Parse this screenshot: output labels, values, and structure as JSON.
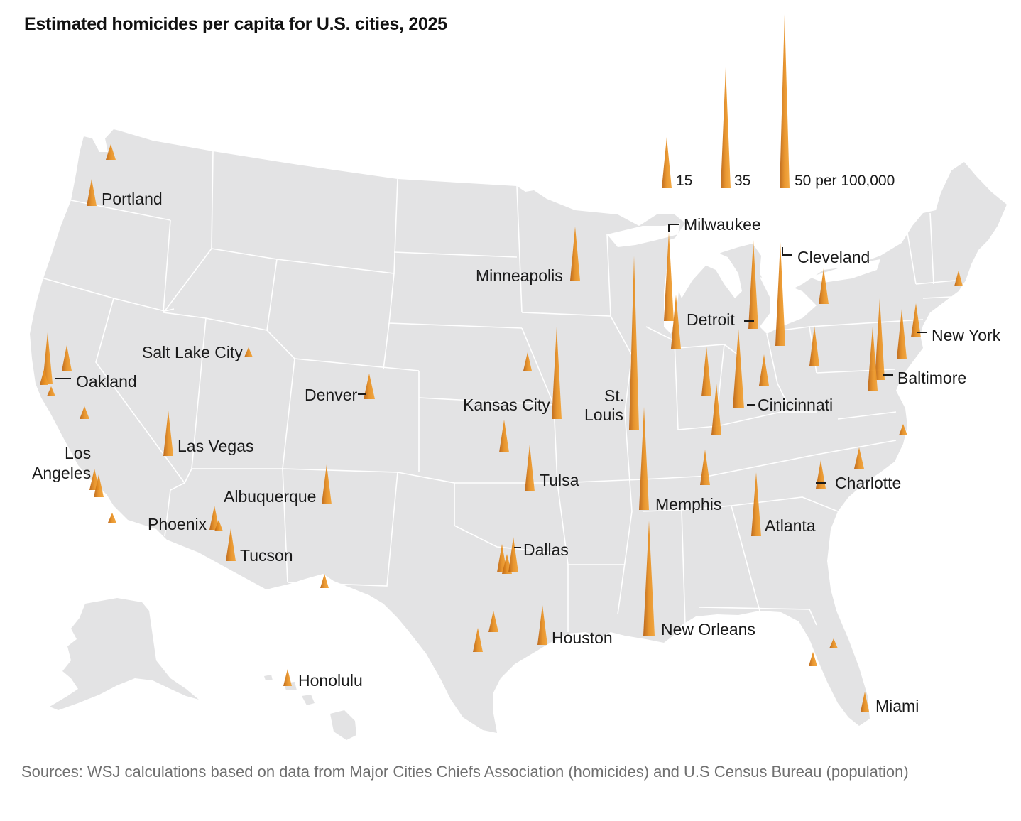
{
  "title": "Estimated homicides per capita for U.S. cities, 2025",
  "source": "Sources: WSJ calculations based on data from Major Cities Chiefs Association (homicides) and U.S Census Bureau (population)",
  "colors": {
    "spike": "#e08a1e",
    "spike_dark": "#a9530f",
    "land": "#e3e3e4",
    "border": "#ffffff"
  },
  "legend": [
    {
      "value": 15,
      "label": "15"
    },
    {
      "value": 35,
      "label": "35"
    },
    {
      "value": 50,
      "label": "50 per 100,000"
    }
  ],
  "labels": {
    "portland": "Portland",
    "oakland": "Oakland",
    "salt_lake_city": "Salt Lake City",
    "denver": "Denver",
    "las_vegas": "Las Vegas",
    "los_angeles_1": "Los",
    "los_angeles_2": "Angeles",
    "albuquerque": "Albuquerque",
    "phoenix": "Phoenix",
    "tucson": "Tucson",
    "honolulu": "Honolulu",
    "minneapolis": "Minneapolis",
    "kansas_city": "Kansas City",
    "tulsa": "Tulsa",
    "dallas": "Dallas",
    "houston": "Houston",
    "milwaukee": "Milwaukee",
    "st_louis_1": "St.",
    "st_louis_2": "Louis",
    "memphis": "Memphis",
    "new_orleans": "New Orleans",
    "detroit": "Detroit",
    "cleveland": "Cleveland",
    "cincinnati": "Cinicinnati",
    "atlanta": "Atlanta",
    "charlotte": "Charlotte",
    "new_york": "New York",
    "baltimore": "Baltimore",
    "miami": "Miami"
  }
}
